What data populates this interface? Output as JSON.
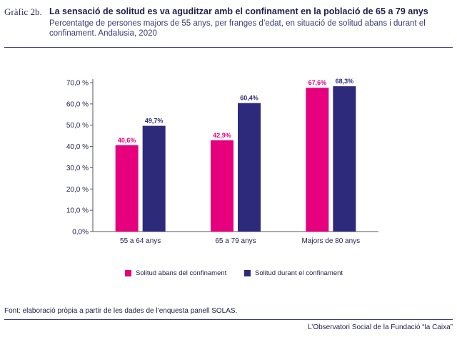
{
  "header": {
    "figure_label": "Gràfic 2b.",
    "title": "La sensació de solitud es va aguditzar amb el confinament en la població de 65 a 79 anys",
    "subtitle": "Percentatge de persones majors de 55 anys, per franges d’edat, en situació de solitud abans i durant el confinament. Andalusia, 2020"
  },
  "chart_data": {
    "type": "bar",
    "categories": [
      "55 a 64 anys",
      "65 a 79 anys",
      "Majors de 80 anys"
    ],
    "series": [
      {
        "name": "Solitud abans del confinament",
        "values": [
          40.6,
          42.9,
          67.6
        ],
        "color": "#e6007e"
      },
      {
        "name": "Solitud durant el confinament",
        "values": [
          49.7,
          60.4,
          68.3
        ],
        "color": "#2e2a7b"
      }
    ],
    "data_labels": [
      [
        "40,6%",
        "42,9%",
        "67,6%"
      ],
      [
        "49,7%",
        "60,4%",
        "68,3%"
      ]
    ],
    "ylim": [
      0,
      70
    ],
    "yticks": [
      0,
      10,
      20,
      30,
      40,
      50,
      60,
      70
    ],
    "ytick_labels": [
      "0,0%",
      "10,0 %",
      "20,0 %",
      "30,0 %",
      "40,0 %",
      "50,0 %",
      "60,0 %",
      "70,0 %"
    ],
    "grid": false,
    "legend": "bottom"
  },
  "footer": {
    "source": "Font: elaboració pròpia a partir de les dades de l’enquesta panell SOLAS.",
    "brand": "L’Observatori Social de la Fundació “la Caixa”"
  }
}
